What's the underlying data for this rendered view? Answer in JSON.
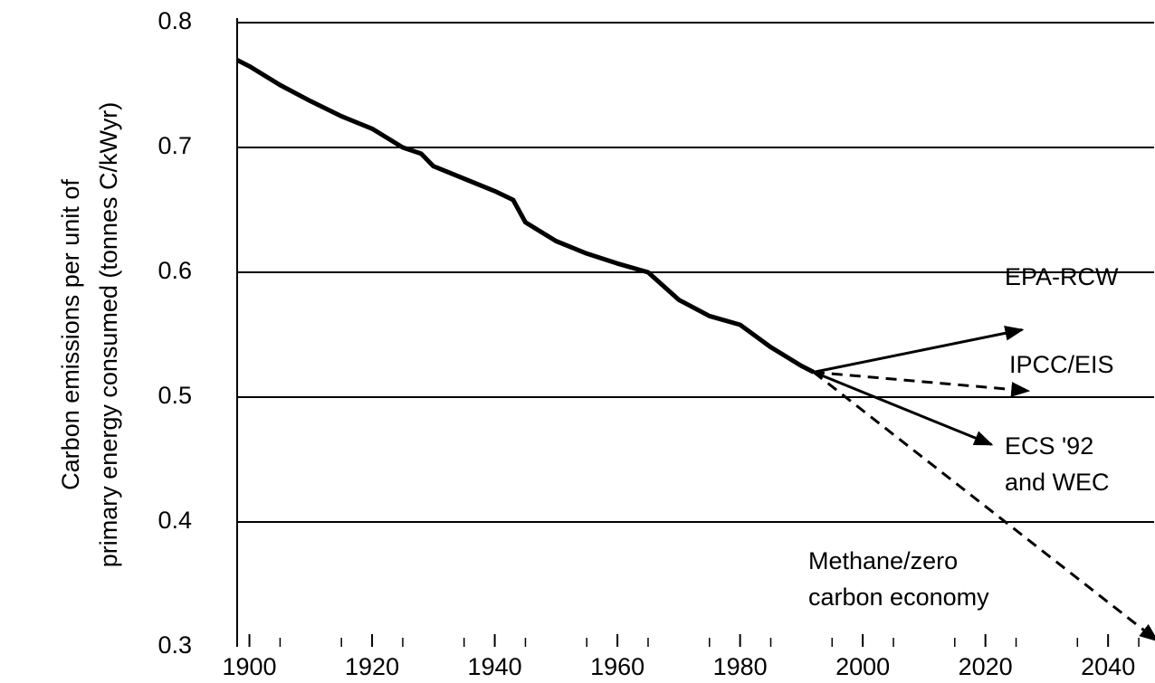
{
  "chart_data": {
    "type": "line",
    "y_label": [
      "Carbon emissions per unit of",
      "primary energy consumed (tonnes C/kWyr)"
    ],
    "xlim": [
      1898,
      2047.5
    ],
    "ylim": [
      0.3,
      0.8
    ],
    "xticks": [
      1900,
      1920,
      1940,
      1960,
      1980,
      2000,
      2020,
      2040
    ],
    "minor_xticks": [
      1905,
      1915,
      1925,
      1935,
      1945,
      1955,
      1965,
      1975,
      1985,
      1995,
      2005,
      2015,
      2025,
      2035,
      2045
    ],
    "yticks": [
      0.3,
      0.4,
      0.5,
      0.6,
      0.7,
      0.8
    ],
    "grid": true,
    "color": "#000000",
    "series": [
      {
        "x": [
          1898,
          1900,
          1905,
          1910,
          1915,
          1920,
          1925,
          1928,
          1930,
          1935,
          1940,
          1943,
          1945,
          1950,
          1955,
          1960,
          1965,
          1970,
          1975,
          1980,
          1985,
          1990,
          1992
        ],
        "values": [
          0.77,
          0.765,
          0.75,
          0.737,
          0.725,
          0.715,
          0.7,
          0.695,
          0.685,
          0.675,
          0.665,
          0.658,
          0.64,
          0.625,
          0.615,
          0.607,
          0.6,
          0.578,
          0.565,
          0.558,
          0.54,
          0.525,
          0.52
        ],
        "dashed": false,
        "arrow": false
      },
      {
        "label": [
          "EPA-RCW"
        ],
        "x": [
          1992,
          2026
        ],
        "values": [
          0.52,
          0.554
        ],
        "dashed": false,
        "arrow": true
      },
      {
        "label": [
          "IPCC/EIS"
        ],
        "x": [
          1992,
          2027
        ],
        "values": [
          0.52,
          0.505
        ],
        "dashed": true,
        "arrow": true
      },
      {
        "label": [
          "ECS '92",
          "and WEC"
        ],
        "x": [
          1992,
          2021
        ],
        "values": [
          0.52,
          0.462
        ],
        "dashed": false,
        "arrow": true
      },
      {
        "label": [
          "Methane/zero",
          "carbon economy"
        ],
        "x": [
          1992,
          2048
        ],
        "values": [
          0.52,
          0.305
        ],
        "dashed": true,
        "arrow": true
      }
    ]
  }
}
